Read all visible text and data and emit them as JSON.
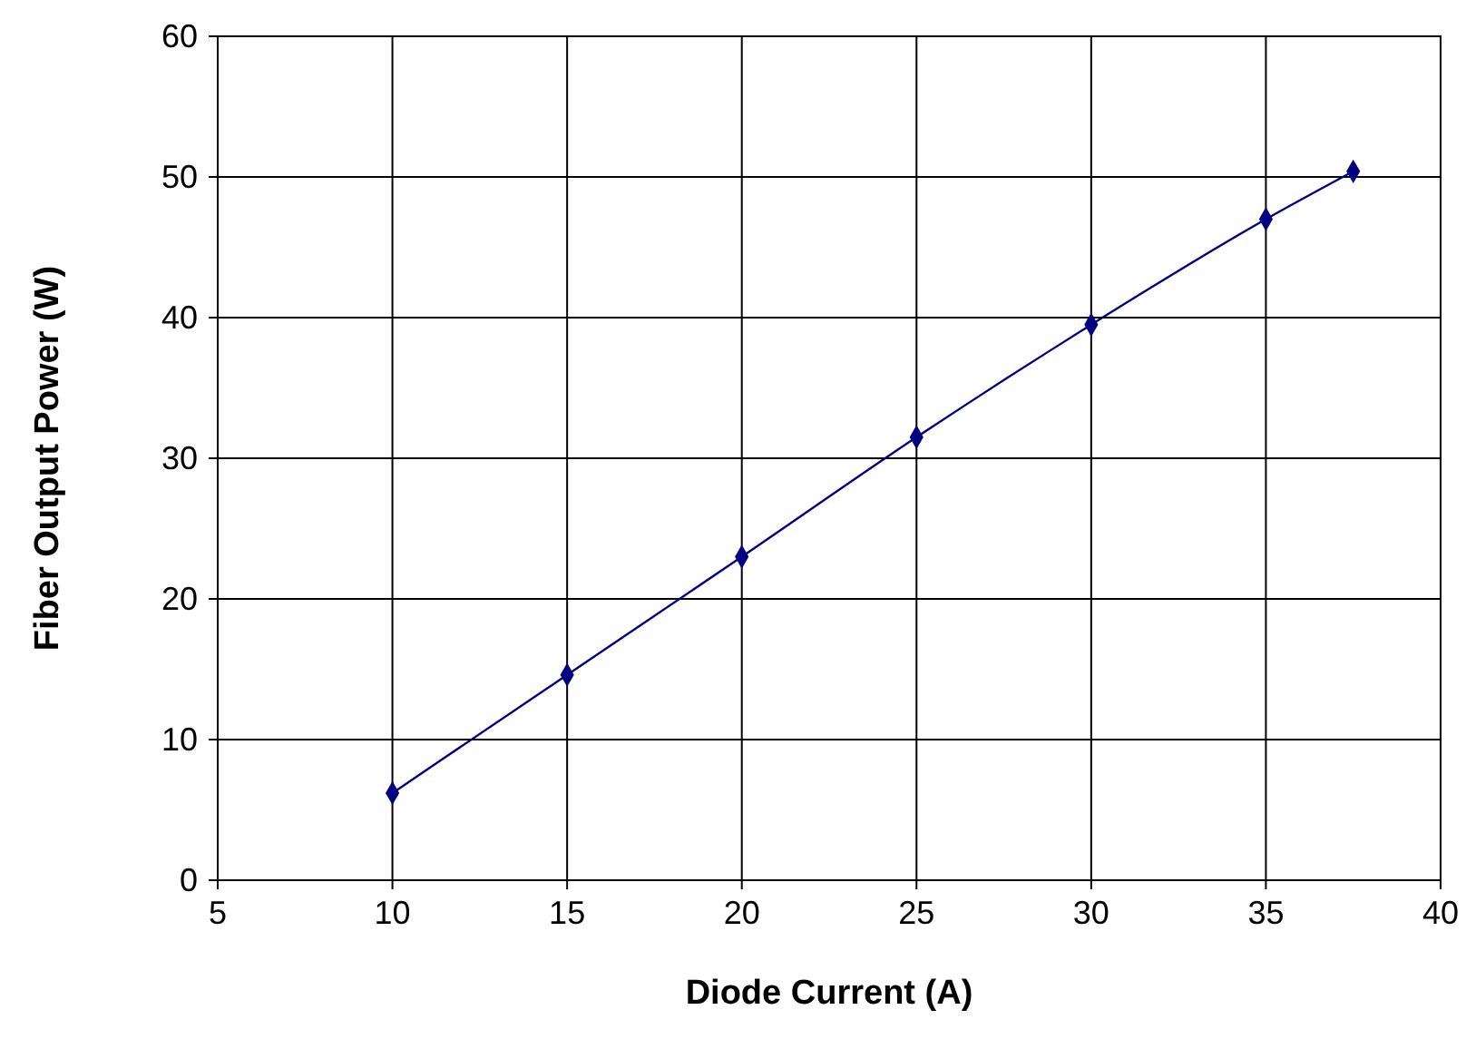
{
  "chart_data": {
    "type": "line",
    "xlabel": "Diode Current (A)",
    "ylabel": "Fiber Output Power (W)",
    "x": [
      10,
      15,
      20,
      25,
      30,
      35,
      37.5
    ],
    "series": [
      {
        "color": "#000080",
        "values": [
          6.2,
          14.6,
          23.0,
          31.5,
          39.5,
          47.0,
          50.4
        ]
      }
    ],
    "xlim": [
      5,
      40
    ],
    "xticks": [
      5,
      10,
      15,
      20,
      25,
      30,
      35,
      40
    ],
    "ylim": [
      0,
      60
    ],
    "yticks": [
      0,
      10,
      20,
      30,
      40,
      50,
      60
    ],
    "grid": true,
    "marker": "diamond",
    "line_style": "solid"
  }
}
